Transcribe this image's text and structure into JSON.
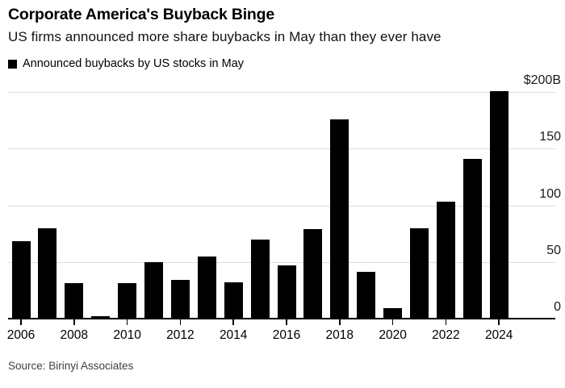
{
  "header": {
    "title": "Corporate America's Buyback Binge",
    "subtitle": "US firms announced more share buybacks in May than they ever have"
  },
  "legend": {
    "label": "Announced buybacks by US stocks in May",
    "swatch_color": "#000000"
  },
  "footer": {
    "source": "Source: Birinyi Associates"
  },
  "chart_data": {
    "type": "bar",
    "title": "Corporate America's Buyback Binge",
    "subtitle": "US firms announced more share buybacks in May than they ever have",
    "series_name": "Announced buybacks by US stocks in May",
    "unit": "billions of US dollars",
    "categories": [
      2006,
      2007,
      2008,
      2009,
      2010,
      2011,
      2012,
      2013,
      2014,
      2015,
      2016,
      2017,
      2018,
      2019,
      2020,
      2021,
      2022,
      2023,
      2024
    ],
    "values": [
      68,
      80,
      31,
      2,
      31,
      50,
      34,
      55,
      32,
      70,
      47,
      79,
      176,
      41,
      9,
      80,
      103,
      141,
      201
    ],
    "ylim": [
      0,
      200
    ],
    "y_ticks": [
      {
        "label": "$200B",
        "value": 200
      },
      {
        "label": "150",
        "value": 150
      },
      {
        "label": "100",
        "value": 100
      },
      {
        "label": "50",
        "value": 50
      },
      {
        "label": "0",
        "value": 0
      }
    ],
    "x_tick_years": [
      2006,
      2008,
      2010,
      2012,
      2014,
      2016,
      2018,
      2020,
      2022,
      2024
    ],
    "bar_color": "#000000",
    "grid_color": "#dcdcdc",
    "axis_color": "#000000",
    "grid": true,
    "legend_position": "top-left",
    "y_axis_side": "right"
  }
}
